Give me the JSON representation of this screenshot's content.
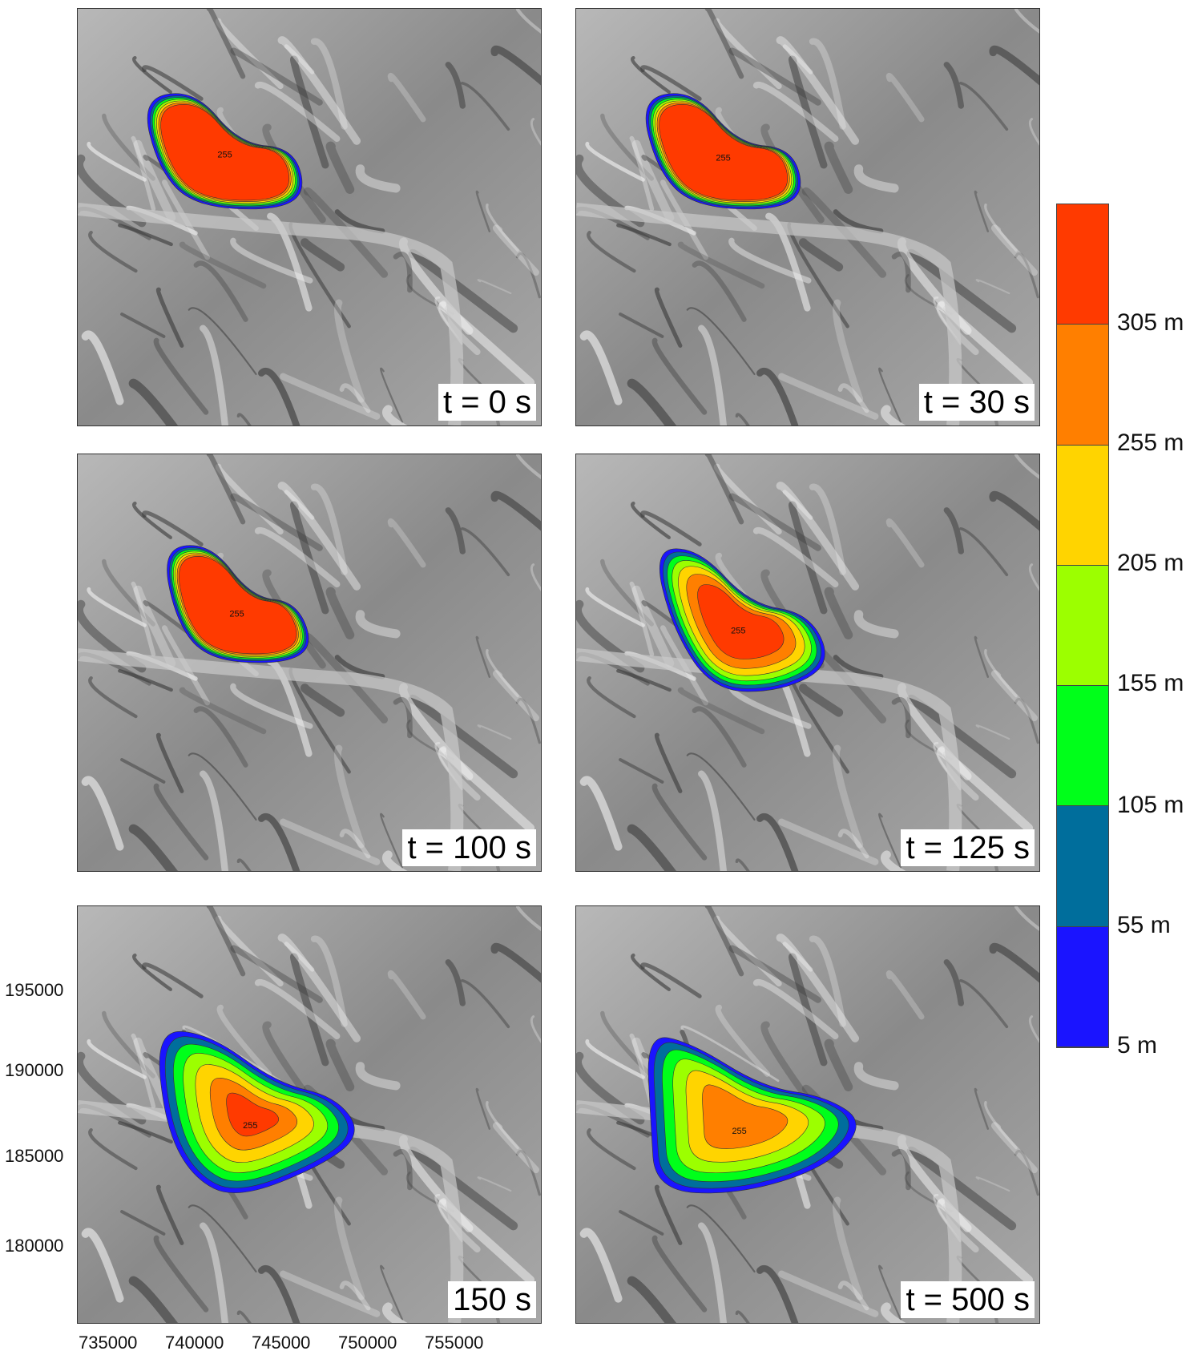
{
  "panels": [
    {
      "label": "t = 0 s",
      "plume_color": "#ff3a00",
      "stage": 0
    },
    {
      "label": "t = 30 s",
      "plume_color": "#ff3a00",
      "stage": 1
    },
    {
      "label": "t = 100 s",
      "plume_color": "#ff3a00",
      "stage": 2
    },
    {
      "label": "t = 125 s",
      "plume_color": "#ff3a00",
      "stage": 3
    },
    {
      "label": "150 s",
      "plume_color": "#ff3a00",
      "stage": 4
    },
    {
      "label": "t = 500 s",
      "plume_color": "#ff7a00",
      "stage": 5
    }
  ],
  "contour_labels": {
    "inner": "255",
    "outer": "5"
  },
  "x_axis_ticks": [
    "735000",
    "740000",
    "745000",
    "750000",
    "755000"
  ],
  "y_axis_ticks": [
    "195000",
    "190000",
    "185000",
    "180000"
  ],
  "legend": {
    "labels": [
      "305 m",
      "255 m",
      "205 m",
      "155 m",
      "105 m",
      "55 m",
      "5 m"
    ],
    "colors": [
      "#ff3a00",
      "#ff7f00",
      "#ffd400",
      "#9cff00",
      "#00ff1a",
      "#006e9c",
      "#1a14ff"
    ]
  }
}
